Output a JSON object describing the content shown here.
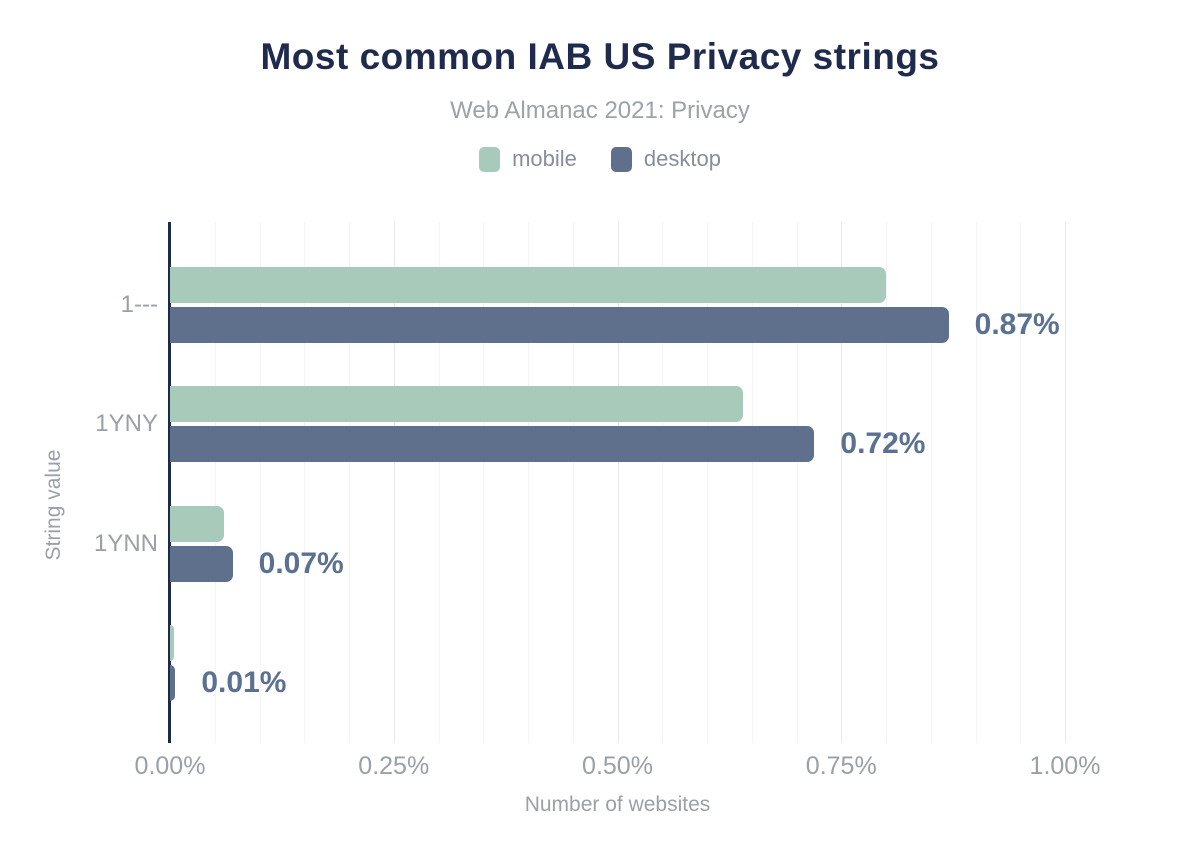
{
  "chart_data": {
    "type": "bar",
    "orientation": "horizontal",
    "title": "Most common IAB US Privacy strings",
    "subtitle": "Web Almanac 2021: Privacy",
    "xlabel": "Number of websites",
    "ylabel": "String value",
    "categories": [
      "1---",
      "1YNY",
      "1YNN",
      ""
    ],
    "series": [
      {
        "name": "mobile",
        "color": "#a8cabb",
        "values": [
          0.8,
          0.64,
          0.06,
          0.005
        ]
      },
      {
        "name": "desktop",
        "color": "#5f708d",
        "values": [
          0.87,
          0.72,
          0.07,
          0.006
        ]
      }
    ],
    "data_labels": [
      "0.87%",
      "0.72%",
      "0.07%",
      "0.01%"
    ],
    "x_ticks": [
      {
        "value": 0.0,
        "label": "0.00%"
      },
      {
        "value": 0.25,
        "label": "0.25%"
      },
      {
        "value": 0.5,
        "label": "0.50%"
      },
      {
        "value": 0.75,
        "label": "0.75%"
      },
      {
        "value": 1.0,
        "label": "1.00%"
      }
    ],
    "xlim": [
      0,
      1.0
    ],
    "grid": {
      "vertical": true,
      "minor_step": 0.05,
      "major_step": 0.25
    },
    "legend_position": "top-center"
  },
  "colors": {
    "title": "#1f2b4d",
    "subtitle": "#9aa2aa",
    "axis_text": "#9aa0a8",
    "legend_text": "#868f9b",
    "data_label": "#5b7191",
    "axis_line": "#1c2b44",
    "gridline_minor": "#f4f4f4",
    "gridline_major": "#e9e9e9"
  }
}
